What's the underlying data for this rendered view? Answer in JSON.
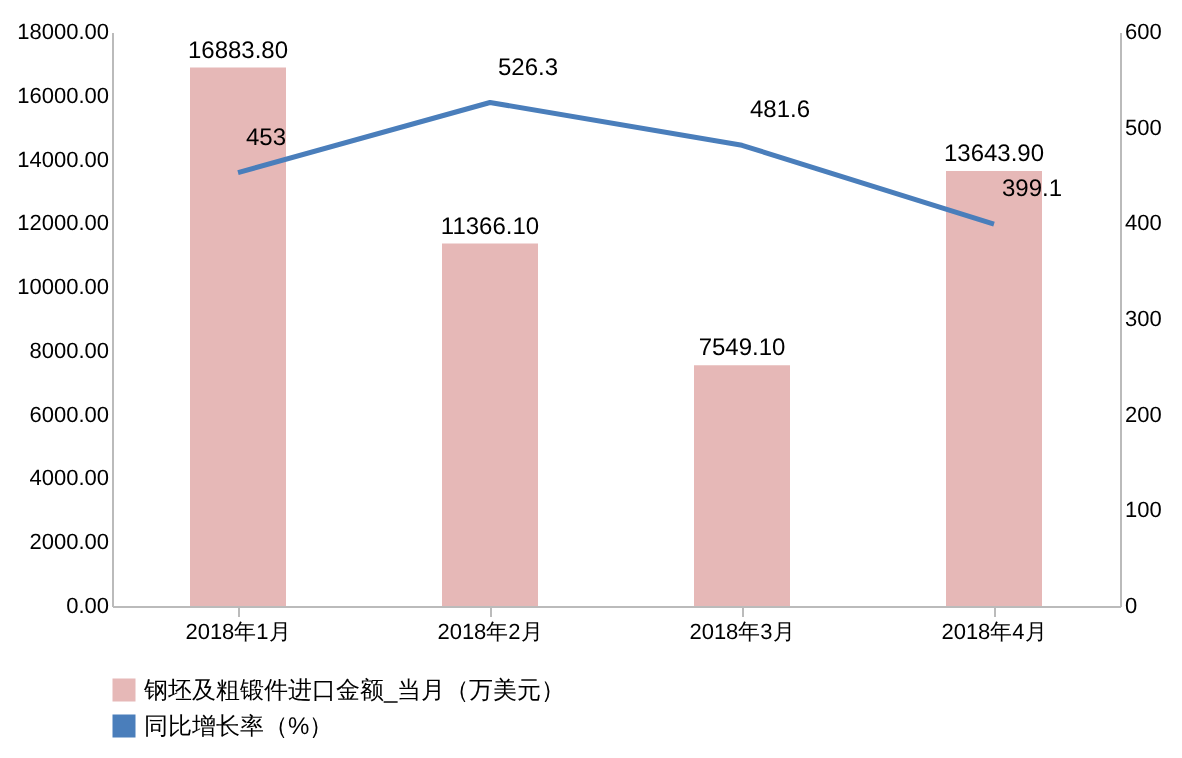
{
  "chart_data": {
    "type": "bar",
    "categories": [
      "2018年1月",
      "2018年2月",
      "2018年3月",
      "2018年4月"
    ],
    "series": [
      {
        "name": "钢坯及粗锻件进口金额_当月（万美元）",
        "color": "#e6b8b7",
        "values": [
          16883.8,
          11366.1,
          7549.1,
          13643.9
        ],
        "value_labels": [
          "16883.80",
          "11366.10",
          "7549.10",
          "13643.90"
        ]
      },
      {
        "name": "同比增长率（%）",
        "type": "line",
        "axis": "y2",
        "color": "#4a7ebb",
        "values": [
          453,
          526.3,
          481.6,
          399.1
        ],
        "value_labels": [
          "453",
          "526.3",
          "481.6",
          "399.1"
        ]
      }
    ],
    "ylim": [
      0,
      18000
    ],
    "yticks": [
      {
        "value": 0,
        "label": "0.00"
      },
      {
        "value": 2000,
        "label": "2000.00"
      },
      {
        "value": 4000,
        "label": "4000.00"
      },
      {
        "value": 6000,
        "label": "6000.00"
      },
      {
        "value": 8000,
        "label": "8000.00"
      },
      {
        "value": 10000,
        "label": "10000.00"
      },
      {
        "value": 12000,
        "label": "12000.00"
      },
      {
        "value": 14000,
        "label": "14000.00"
      },
      {
        "value": 16000,
        "label": "16000.00"
      },
      {
        "value": 18000,
        "label": "18000.00"
      }
    ],
    "y2lim": [
      0,
      600
    ],
    "y2ticks": [
      0,
      100,
      200,
      300,
      400,
      500,
      600
    ],
    "legend": "bottom",
    "marker": "none"
  }
}
